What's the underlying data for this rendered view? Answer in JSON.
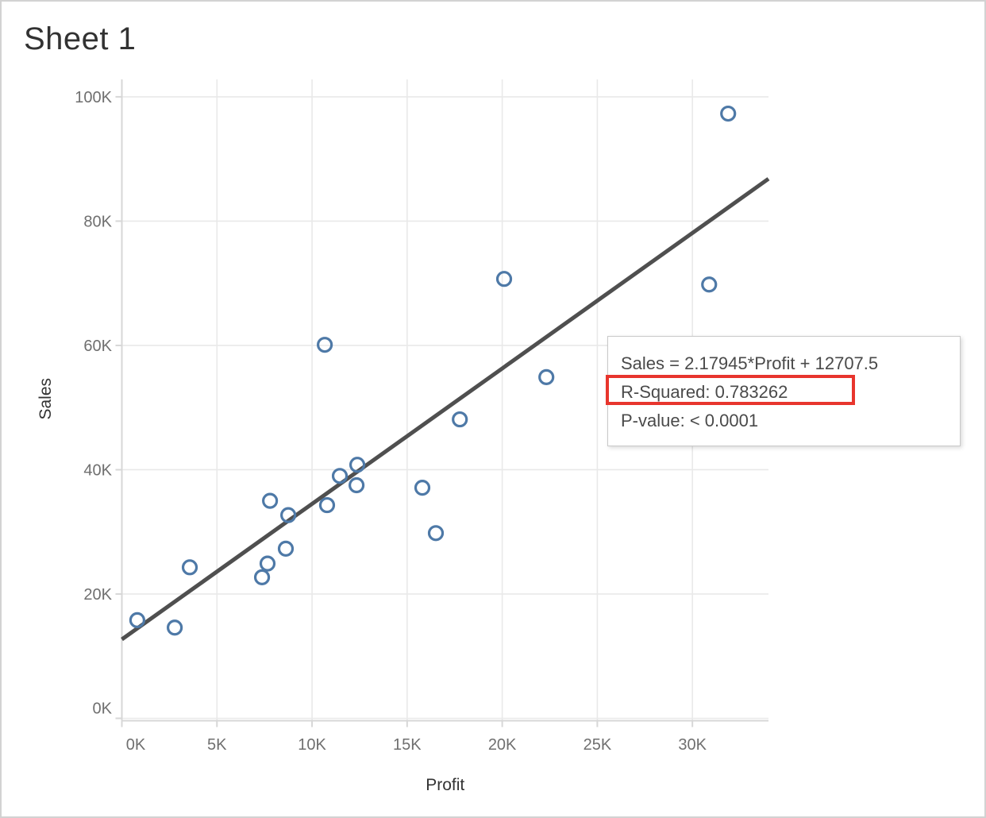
{
  "window": {
    "title": "Sheet 1"
  },
  "annotation": {
    "line1": "Sales = 2.17945*Profit + 12707.5",
    "line2": "R-Squared: 0.783262",
    "line3": "P-value: < 0.0001",
    "highlighted_line": "R-Squared: 0.783262"
  },
  "colors": {
    "point_stroke": "#4e79a7",
    "trend_line": "#4f4f4f",
    "highlight_red": "#e8352d",
    "grid_line": "#e9e9e9",
    "axis_line": "#d7d7d7",
    "tick_label": "#6f6f6f",
    "axis_title": "#333333",
    "title_text": "#323232",
    "annotation_text": "#4a4a4a"
  },
  "chart_data": {
    "type": "scatter",
    "title": "Sheet 1",
    "xlabel": "Profit",
    "ylabel": "Sales",
    "xlim": [
      0,
      34000
    ],
    "ylim": [
      0,
      102800
    ],
    "grid": true,
    "x_tick_values": [
      0,
      5000,
      10000,
      15000,
      20000,
      25000,
      30000
    ],
    "x_tick_labels": [
      "0K",
      "5K",
      "10K",
      "15K",
      "20K",
      "25K",
      "30K"
    ],
    "y_tick_values": [
      0,
      20000,
      40000,
      60000,
      80000,
      100000
    ],
    "y_tick_labels": [
      "0K",
      "20K",
      "40K",
      "60K",
      "80K",
      "100K"
    ],
    "points": [
      [
        810,
        15800
      ],
      [
        2780,
        14600
      ],
      [
        3570,
        24300
      ],
      [
        7370,
        22700
      ],
      [
        7660,
        24900
      ],
      [
        7790,
        35000
      ],
      [
        8620,
        27300
      ],
      [
        8750,
        32700
      ],
      [
        10670,
        60100
      ],
      [
        10790,
        34300
      ],
      [
        11460,
        39000
      ],
      [
        12340,
        37500
      ],
      [
        12380,
        40800
      ],
      [
        15800,
        37100
      ],
      [
        16510,
        29800
      ],
      [
        17770,
        48100
      ],
      [
        20100,
        70700
      ],
      [
        22320,
        54900
      ],
      [
        30880,
        69800
      ],
      [
        31880,
        97300
      ]
    ],
    "trend": {
      "slope": 2.17945,
      "intercept": 12707.5,
      "equation": "Sales = 2.17945*Profit + 12707.5",
      "r_squared": 0.783262,
      "p_value": "< 0.0001",
      "x_start": 0,
      "x_end": 34000
    }
  }
}
